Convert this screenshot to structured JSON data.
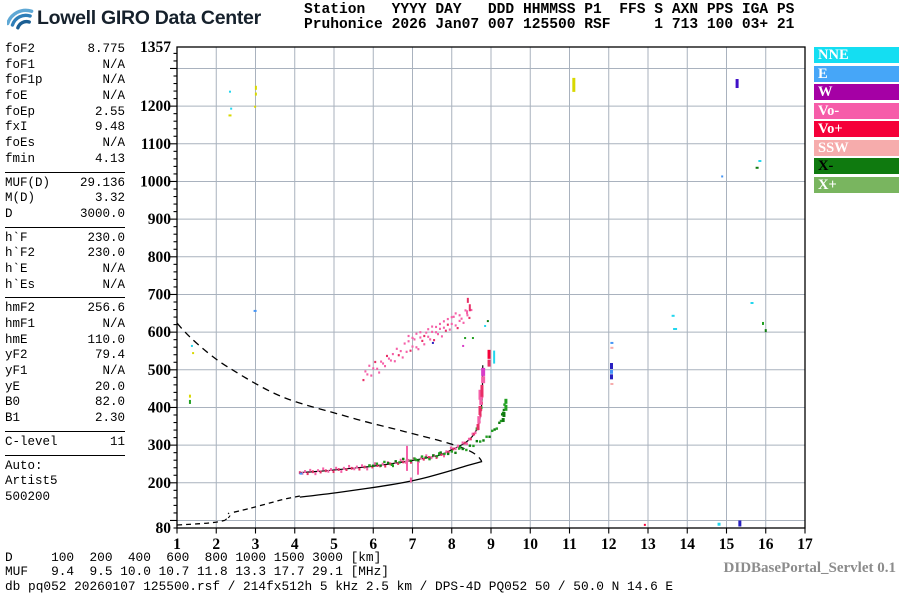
{
  "logo": {
    "text": "Lowell GIRO Data Center"
  },
  "header": {
    "columns": [
      {
        "label": "Station",
        "value": "Pruhonice",
        "width": 9
      },
      {
        "label": "YYYY",
        "value": "2026",
        "width": 4
      },
      {
        "label": "DAY",
        "value": "Jan07",
        "width": 5
      },
      {
        "label": "DDD",
        "value": "007",
        "width": 3
      },
      {
        "label": "HHMMSS",
        "value": "125500",
        "width": 6
      },
      {
        "label": "P1",
        "value": "RSF",
        "width": 3
      },
      {
        "label": "FFS",
        "value": "",
        "width": 3
      },
      {
        "label": "S",
        "value": "1",
        "width": 1
      },
      {
        "label": "AXN",
        "value": "713",
        "width": 3
      },
      {
        "label": "PPS",
        "value": "100",
        "width": 3
      },
      {
        "label": "IGA",
        "value": "03+",
        "width": 3
      },
      {
        "label": "PS",
        "value": "21",
        "width": 2
      }
    ]
  },
  "params": {
    "groups": [
      [
        [
          "foF2",
          "8.775"
        ],
        [
          "foF1",
          "N/A"
        ],
        [
          "foF1p",
          "N/A"
        ],
        [
          "foE",
          "N/A"
        ],
        [
          "foEp",
          "2.55"
        ],
        [
          "fxI",
          "9.48"
        ],
        [
          "foEs",
          "N/A"
        ],
        [
          "fmin",
          "4.13"
        ]
      ],
      [
        [
          "MUF(D)",
          "29.136"
        ],
        [
          "M(D)",
          "3.32"
        ],
        [
          "D",
          "3000.0"
        ]
      ],
      [
        [
          "h`F",
          "230.0"
        ],
        [
          "h`F2",
          "230.0"
        ],
        [
          "h`E",
          "N/A"
        ],
        [
          "h`Es",
          "N/A"
        ]
      ],
      [
        [
          "hmF2",
          "256.6"
        ],
        [
          "hmF1",
          "N/A"
        ],
        [
          "hmE",
          "110.0"
        ],
        [
          "yF2",
          "79.4"
        ],
        [
          "yF1",
          "N/A"
        ],
        [
          "yE",
          "20.0"
        ],
        [
          "B0",
          "82.0"
        ],
        [
          "B1",
          "2.30"
        ]
      ],
      [
        [
          "C-level",
          "11"
        ]
      ]
    ],
    "auto_lines": [
      "Auto:",
      "Artist5",
      "500200"
    ]
  },
  "legend": [
    {
      "label": "NNE",
      "bg": "#14DEF2",
      "fg": "#FFFFFF"
    },
    {
      "label": "E",
      "bg": "#46A6F8",
      "fg": "#FFFFFF"
    },
    {
      "label": "W",
      "bg": "#A500A5",
      "fg": "#FFFFFF"
    },
    {
      "label": "Vo-",
      "bg": "#F65CA9",
      "fg": "#FFFFFF"
    },
    {
      "label": "Vo+",
      "bg": "#F50039",
      "fg": "#FFFFFF"
    },
    {
      "label": "SSW",
      "bg": "#F6ACAC",
      "fg": "#FFFFFF"
    },
    {
      "label": "X-",
      "bg": "#0F7A0F",
      "fg": "#000000"
    },
    {
      "label": "X+",
      "bg": "#79B55F",
      "fg": "#FFFFFF"
    }
  ],
  "footer": {
    "scale_rows": [
      {
        "label": "D",
        "values": [
          "100",
          "200",
          "400",
          "600",
          "800",
          "1000",
          "1500",
          "3000"
        ],
        "unit": "[km]"
      },
      {
        "label": "MUF",
        "values": [
          "9.4",
          "9.5",
          "10.0",
          "10.7",
          "11.8",
          "13.3",
          "17.7",
          "29.1"
        ],
        "unit": "[MHz]"
      }
    ],
    "status": "db pq052 20260107 125500.rsf / 214fx512h 5 kHz 2.5 km / DPS-4D PQ052 50 / 50.0 N 14.6 E",
    "servlet": "DIDBasePortal_Servlet 0.1"
  },
  "chart_data": {
    "type": "scatter",
    "title": "Ionogram, Pruhonice 2026 Jan07 125500",
    "x_axis": {
      "unit": "MHz",
      "min": 1,
      "max": 17,
      "ticks": [
        1,
        2,
        3,
        4,
        5,
        6,
        7,
        8,
        9,
        10,
        11,
        12,
        13,
        14,
        15,
        16,
        17
      ]
    },
    "y_axis": {
      "unit": "km",
      "min": 80,
      "max": 1357,
      "tick_labels": [
        1357,
        1200,
        1100,
        1000,
        900,
        800,
        700,
        600,
        500,
        400,
        300,
        200,
        80
      ],
      "gridlines": [
        100,
        200,
        300,
        400,
        500,
        600,
        700,
        800,
        900,
        1000,
        1100,
        1200,
        1300
      ],
      "minor_step": 20
    },
    "grid": true,
    "palette": {
      "cyan": "#22D6EE",
      "blue": "#4696F6",
      "navy": "#2820C0",
      "indigo": "#4010C8",
      "magenta": "#D83CC8",
      "yellow": "#D8D800",
      "green": "#22A022",
      "darkgreen": "#0F7A0F",
      "red": "#F50039",
      "crimson": "#E82F66",
      "pinkHot": "#F560A8",
      "salmon": "#F6ACAC",
      "black": "#000000"
    },
    "profile_topside_dashed": [
      [
        1.0,
        624
      ],
      [
        1.2,
        600
      ],
      [
        1.45,
        575
      ],
      [
        1.75,
        548
      ],
      [
        2.1,
        520
      ],
      [
        2.5,
        494
      ],
      [
        2.95,
        466
      ],
      [
        3.45,
        438
      ],
      [
        3.95,
        417
      ],
      [
        4.5,
        400
      ],
      [
        5.1,
        383
      ],
      [
        5.8,
        362
      ],
      [
        6.5,
        344
      ],
      [
        7.1,
        328
      ],
      [
        7.7,
        312
      ],
      [
        8.2,
        296
      ],
      [
        8.5,
        283
      ],
      [
        8.68,
        270
      ],
      [
        8.76,
        258
      ]
    ],
    "profile_bottom_dashed": [
      [
        1.0,
        88
      ],
      [
        1.4,
        90
      ],
      [
        1.8,
        93
      ],
      [
        2.05,
        96
      ],
      [
        2.2,
        100
      ]
    ],
    "profile_valley_hook": [
      [
        2.2,
        99
      ],
      [
        2.26,
        104
      ],
      [
        2.33,
        109
      ],
      [
        2.36,
        115
      ],
      [
        2.3,
        120
      ]
    ],
    "profile_bottom_dashed2": [
      [
        2.45,
        122
      ],
      [
        2.7,
        128
      ],
      [
        3.0,
        136
      ],
      [
        3.35,
        146
      ],
      [
        3.7,
        156
      ],
      [
        4.13,
        165
      ]
    ],
    "profile_bottom_solid": [
      [
        4.13,
        162
      ],
      [
        4.8,
        170
      ],
      [
        5.5,
        180
      ],
      [
        6.1,
        189
      ],
      [
        6.7,
        199
      ],
      [
        7.2,
        210
      ],
      [
        7.6,
        221
      ],
      [
        8.0,
        233
      ],
      [
        8.3,
        243
      ],
      [
        8.5,
        249
      ],
      [
        8.65,
        253
      ],
      [
        8.775,
        256.6
      ]
    ],
    "o_trace": {
      "polyline": [
        [
          4.13,
          227
        ],
        [
          4.4,
          229
        ],
        [
          4.7,
          231
        ],
        [
          5.0,
          234
        ],
        [
          5.3,
          237
        ],
        [
          5.6,
          240
        ],
        [
          5.9,
          243
        ],
        [
          6.2,
          247
        ],
        [
          6.5,
          251
        ],
        [
          6.8,
          256
        ],
        [
          7.1,
          261
        ],
        [
          7.4,
          267
        ],
        [
          7.6,
          271
        ],
        [
          7.8,
          277
        ],
        [
          8.0,
          288
        ],
        [
          8.15,
          295
        ],
        [
          8.3,
          303
        ],
        [
          8.42,
          312
        ],
        [
          8.52,
          322
        ],
        [
          8.6,
          334
        ],
        [
          8.66,
          347
        ],
        [
          8.7,
          361
        ],
        [
          8.73,
          378
        ],
        [
          8.755,
          398
        ],
        [
          8.77,
          420
        ],
        [
          8.78,
          438
        ]
      ],
      "fit_extension": [
        [
          8.785,
          470
        ],
        [
          8.79,
          495
        ],
        [
          8.79,
          512
        ]
      ]
    },
    "x_trace": {
      "polyline": [
        [
          5.9,
          246
        ],
        [
          6.2,
          250
        ],
        [
          6.5,
          254
        ],
        [
          6.8,
          258
        ],
        [
          7.1,
          263
        ],
        [
          7.4,
          268
        ],
        [
          7.7,
          274
        ],
        [
          8.0,
          281
        ],
        [
          8.2,
          287
        ],
        [
          8.4,
          294
        ],
        [
          8.55,
          300
        ],
        [
          8.7,
          308
        ],
        [
          8.85,
          317
        ],
        [
          8.97,
          327
        ],
        [
          9.07,
          338
        ],
        [
          9.15,
          350
        ],
        [
          9.22,
          358
        ],
        [
          9.27,
          370
        ],
        [
          9.3,
          382
        ],
        [
          9.33,
          396
        ],
        [
          9.35,
          410
        ]
      ]
    },
    "second_hop_points": [
      [
        5.75,
        473
      ],
      [
        5.8,
        496
      ],
      [
        5.85,
        488
      ],
      [
        5.9,
        511
      ],
      [
        5.95,
        485
      ],
      [
        6.0,
        504
      ],
      [
        6.05,
        521
      ],
      [
        6.1,
        503
      ],
      [
        6.15,
        493
      ],
      [
        6.2,
        522
      ],
      [
        6.25,
        517
      ],
      [
        6.3,
        510
      ],
      [
        6.35,
        537
      ],
      [
        6.4,
        530
      ],
      [
        6.45,
        525
      ],
      [
        6.5,
        542
      ],
      [
        6.55,
        523
      ],
      [
        6.6,
        556
      ],
      [
        6.65,
        539
      ],
      [
        6.7,
        550
      ],
      [
        6.75,
        533
      ],
      [
        6.8,
        570
      ],
      [
        6.85,
        548
      ],
      [
        6.9,
        576
      ],
      [
        6.95,
        551
      ],
      [
        7.0,
        562
      ],
      [
        7.05,
        581
      ],
      [
        7.1,
        560
      ],
      [
        7.15,
        555
      ],
      [
        7.2,
        586
      ],
      [
        7.25,
        577
      ],
      [
        7.3,
        568
      ],
      [
        7.35,
        599
      ],
      [
        7.4,
        588
      ],
      [
        7.45,
        581
      ],
      [
        7.5,
        601
      ],
      [
        7.55,
        579
      ],
      [
        7.6,
        614
      ],
      [
        7.65,
        595
      ],
      [
        7.7,
        609
      ],
      [
        7.75,
        589
      ],
      [
        7.8,
        629
      ],
      [
        7.85,
        604
      ],
      [
        7.9,
        635
      ],
      [
        7.95,
        607
      ],
      [
        8.0,
        622
      ],
      [
        8.05,
        641
      ],
      [
        8.1,
        618
      ],
      [
        8.15,
        611
      ],
      [
        8.2,
        645
      ],
      [
        8.25,
        636
      ],
      [
        8.3,
        625
      ],
      [
        8.35,
        658
      ],
      [
        8.4,
        645
      ],
      [
        8.45,
        638
      ],
      [
        8.5,
        659
      ],
      [
        6.9,
        590
      ],
      [
        7.0,
        585
      ],
      [
        7.1,
        596
      ],
      [
        7.2,
        600
      ],
      [
        7.3,
        590
      ],
      [
        7.4,
        608
      ],
      [
        7.5,
        615
      ],
      [
        7.6,
        600
      ],
      [
        7.7,
        622
      ],
      [
        7.8,
        612
      ],
      [
        7.9,
        620
      ],
      [
        8.0,
        640
      ],
      [
        8.1,
        650
      ],
      [
        8.2,
        630
      ]
    ],
    "marks": [
      [
        2.35,
        1241,
        2,
        2,
        "cyan"
      ],
      [
        3.01,
        1254,
        2,
        4,
        "yellow"
      ],
      [
        3.01,
        1236,
        2,
        3,
        "yellow"
      ],
      [
        2.38,
        1196,
        2,
        2,
        "cyan"
      ],
      [
        2.35,
        1178,
        3,
        2,
        "yellow"
      ],
      [
        2.99,
        1201,
        2,
        2,
        "yellow"
      ],
      [
        11.11,
        1275,
        3,
        14,
        "yellow"
      ],
      [
        15.27,
        1272,
        3,
        9,
        "indigo"
      ],
      [
        15.85,
        1057,
        3,
        2,
        "cyan"
      ],
      [
        15.78,
        1039,
        3,
        2,
        "darkgreen"
      ],
      [
        14.89,
        1016,
        2,
        2,
        "blue"
      ],
      [
        2.99,
        659,
        3,
        2,
        "blue"
      ],
      [
        1.38,
        566,
        2,
        2,
        "cyan"
      ],
      [
        1.41,
        547,
        2,
        2,
        "yellow"
      ],
      [
        1.33,
        434,
        2,
        3,
        "yellow"
      ],
      [
        1.33,
        420,
        2,
        4,
        "green"
      ],
      [
        15.65,
        680,
        3,
        2,
        "cyan"
      ],
      [
        13.64,
        646,
        3,
        2,
        "cyan"
      ],
      [
        13.69,
        611,
        4,
        2,
        "cyan"
      ],
      [
        12.08,
        574,
        3,
        2,
        "blue"
      ],
      [
        12.08,
        561,
        3,
        2,
        "salmon"
      ],
      [
        12.07,
        518,
        3,
        6,
        "navy"
      ],
      [
        12.07,
        500,
        3,
        4,
        "blue"
      ],
      [
        12.07,
        488,
        3,
        5,
        "navy"
      ],
      [
        12.08,
        465,
        3,
        2,
        "salmon"
      ],
      [
        8.92,
        632,
        2,
        2,
        "darkgreen"
      ],
      [
        8.85,
        619,
        2,
        2,
        "cyan"
      ],
      [
        8.34,
        587,
        2,
        2,
        "green"
      ],
      [
        8.54,
        587,
        2,
        2,
        "green"
      ],
      [
        8.29,
        566,
        2,
        2,
        "magenta"
      ],
      [
        7.52,
        574,
        2,
        2,
        "navy"
      ],
      [
        8.41,
        691,
        2,
        5,
        "crimson"
      ],
      [
        8.46,
        674,
        2,
        7,
        "crimson"
      ],
      [
        8.39,
        658,
        2,
        4,
        "pinkHot"
      ],
      [
        8.95,
        553,
        3,
        9,
        "red"
      ],
      [
        8.95,
        527,
        3,
        7,
        "crimson"
      ],
      [
        9.08,
        551,
        2,
        13,
        "cyan"
      ],
      [
        8.8,
        505,
        4,
        8,
        "magenta"
      ],
      [
        8.8,
        483,
        4,
        7,
        "pinkHot"
      ],
      [
        8.72,
        447,
        3,
        10,
        "pinkHot"
      ],
      [
        8.77,
        460,
        3,
        12,
        "crimson"
      ],
      [
        8.74,
        428,
        3,
        8,
        "pinkHot"
      ],
      [
        8.72,
        404,
        3,
        9,
        "crimson"
      ],
      [
        8.69,
        377,
        3,
        7,
        "pinkHot"
      ],
      [
        8.67,
        356,
        3,
        6,
        "crimson"
      ],
      [
        9.38,
        423,
        3,
        5,
        "green"
      ],
      [
        9.38,
        407,
        3,
        6,
        "green"
      ],
      [
        9.33,
        388,
        3,
        5,
        "darkgreen"
      ],
      [
        9.31,
        372,
        3,
        4,
        "darkgreen"
      ],
      [
        15.93,
        627,
        2,
        3,
        "green"
      ],
      [
        16.0,
        608,
        2,
        3,
        "darkgreen"
      ],
      [
        12.92,
        91,
        2,
        2,
        "red"
      ],
      [
        14.81,
        94,
        3,
        3,
        "cyan"
      ],
      [
        15.34,
        100,
        3,
        6,
        "navy"
      ],
      [
        4.16,
        227,
        3,
        2,
        "blue"
      ],
      [
        6.86,
        298,
        2,
        25,
        "pinkHot"
      ],
      [
        7.14,
        256,
        2,
        13,
        "pinkHot"
      ],
      [
        6.96,
        214,
        2,
        5,
        "pinkHot"
      ]
    ]
  }
}
